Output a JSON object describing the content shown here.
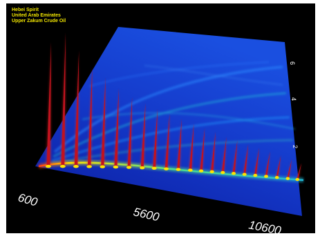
{
  "legend": {
    "lines": [
      "Hebei Spirit",
      "United Arab Emirates",
      "Upper Zakum Crude Oil"
    ],
    "color": "#f2e600"
  },
  "chart_data": {
    "type": "heatmap",
    "title": "",
    "xlabel": "",
    "ylabel": "",
    "x_ticks": [
      "600",
      "5600",
      "10600"
    ],
    "y_ticks": [
      "2",
      "4",
      "6"
    ],
    "x_range": [
      600,
      11600
    ],
    "y_range": [
      0,
      7
    ],
    "colors": {
      "background": "#000000",
      "low": "#0a1fb0",
      "mid": "#1f7bff",
      "band": "#21d6c2",
      "high": "#ffe400",
      "peak": "#c1121f"
    },
    "peak_x": [
      1000,
      1600,
      2150,
      2700,
      3250,
      3800,
      4350,
      4900,
      5400,
      5900,
      6400,
      6900,
      7350,
      7800,
      8250,
      8700,
      9150,
      9600,
      10050,
      10500,
      10950,
      11350
    ],
    "peak_intensity": [
      0.9,
      0.97,
      0.84,
      0.72,
      0.65,
      0.57,
      0.51,
      0.47,
      0.43,
      0.4,
      0.37,
      0.34,
      0.31,
      0.29,
      0.26,
      0.24,
      0.22,
      0.2,
      0.18,
      0.16,
      0.14,
      0.12
    ]
  }
}
